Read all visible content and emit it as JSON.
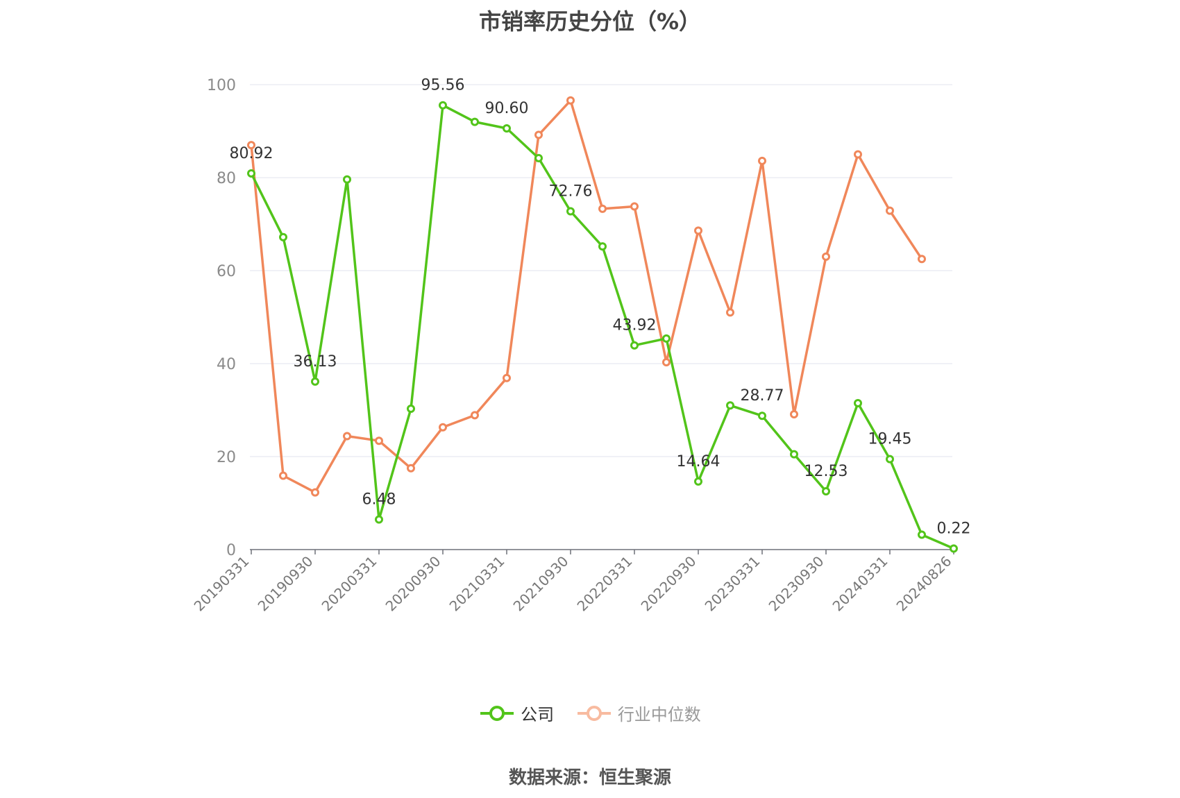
{
  "chart_data": {
    "type": "line",
    "title": "市销率历史分位（%）",
    "xlabel": "",
    "ylabel": "",
    "ylim": [
      0,
      100
    ],
    "yticks": [
      0,
      20,
      40,
      60,
      80,
      100
    ],
    "x": [
      "20190331",
      "20190630",
      "20190930",
      "20191231",
      "20200331",
      "20200630",
      "20200930",
      "20201231",
      "20210331",
      "20210630",
      "20210930",
      "20211231",
      "20220331",
      "20220630",
      "20220930",
      "20221231",
      "20230331",
      "20230630",
      "20230930",
      "20231231",
      "20240331",
      "20240630",
      "20240826"
    ],
    "xtick_labels": [
      "20190331",
      "20190930",
      "20200331",
      "20200930",
      "20210331",
      "20210930",
      "20220331",
      "20220930",
      "20230331",
      "20230930",
      "20240331",
      "20240826"
    ],
    "series": [
      {
        "name": "公司",
        "color": "#52c41a",
        "values": [
          80.92,
          67.2,
          36.13,
          79.6,
          6.48,
          30.3,
          95.56,
          92.0,
          90.6,
          84.2,
          72.76,
          65.2,
          43.92,
          45.4,
          14.64,
          31.0,
          28.77,
          20.5,
          12.53,
          31.5,
          19.45,
          3.2,
          0.22
        ]
      },
      {
        "name": "行业中位数",
        "color": "#f0875a",
        "values": [
          87.0,
          15.9,
          12.3,
          24.4,
          23.4,
          17.5,
          26.3,
          28.9,
          36.9,
          89.2,
          96.6,
          73.3,
          73.8,
          40.3,
          68.6,
          51.0,
          83.6,
          29.1,
          63.0,
          85.0,
          72.9,
          62.5,
          null
        ]
      }
    ],
    "data_labels": [
      {
        "index": 0,
        "text": "80.92"
      },
      {
        "index": 2,
        "text": "36.13"
      },
      {
        "index": 4,
        "text": "6.48"
      },
      {
        "index": 6,
        "text": "95.56"
      },
      {
        "index": 8,
        "text": "90.60"
      },
      {
        "index": 10,
        "text": "72.76"
      },
      {
        "index": 12,
        "text": "43.92"
      },
      {
        "index": 14,
        "text": "14.64"
      },
      {
        "index": 16,
        "text": "28.77"
      },
      {
        "index": 18,
        "text": "12.53"
      },
      {
        "index": 20,
        "text": "19.45"
      },
      {
        "index": 22,
        "text": "0.22"
      }
    ],
    "grid": true,
    "legend_position": "bottom"
  },
  "legend": {
    "company_label": "公司",
    "industry_label": "行业中位数"
  },
  "source": "数据来源：恒生聚源"
}
